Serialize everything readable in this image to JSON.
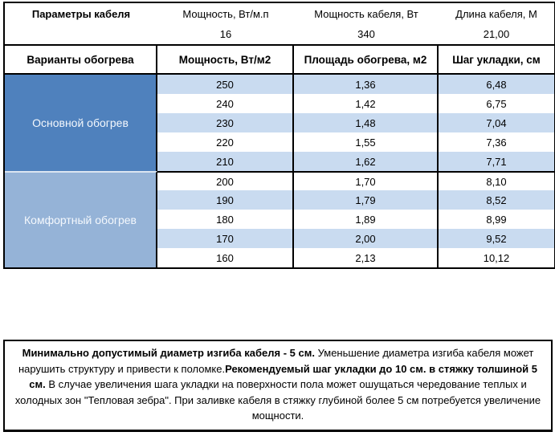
{
  "table": {
    "params_header": {
      "col1": "Параметры кабеля",
      "col2": "Мощность, Вт/м.п",
      "col3": "Мощность кабеля, Вт",
      "col4": "Длина кабеля, М"
    },
    "params_values": {
      "col2": "16",
      "col3": "340",
      "col4": "21,00"
    },
    "columns": [
      "Варианты обогрева",
      "Мощность, Вт/м2",
      "Площадь обогрева, м2",
      "Шаг укладки, см"
    ],
    "sections": [
      {
        "label": "Основной обогрев",
        "bg": "#4f81bd",
        "rows": [
          [
            "250",
            "1,36",
            "6,48"
          ],
          [
            "240",
            "1,42",
            "6,75"
          ],
          [
            "230",
            "1,48",
            "7,04"
          ],
          [
            "220",
            "1,55",
            "7,36"
          ],
          [
            "210",
            "1,62",
            "7,71"
          ]
        ]
      },
      {
        "label": "Комфортный обогрев",
        "bg": "#95b3d7",
        "rows": [
          [
            "200",
            "1,70",
            "8,10"
          ],
          [
            "190",
            "1,79",
            "8,52"
          ],
          [
            "180",
            "1,89",
            "8,99"
          ],
          [
            "170",
            "2,00",
            "9,52"
          ],
          [
            "160",
            "2,13",
            "10,12"
          ]
        ]
      }
    ],
    "stripe_color": "#c9dbf0",
    "border_color": "#000000"
  },
  "note": {
    "segments": [
      {
        "text": "Минимально допустимый диаметр изгиба кабеля - 5 см. ",
        "bold": true
      },
      {
        "text": " Уменьшение диаметра изгиба кабеля может нарушить структуру и привести к поломке.",
        "bold": false
      },
      {
        "text": "Рекомендуемый шаг укладки до 10 см. в стяжку толшиной 5 см.",
        "bold": true
      },
      {
        "text": " В  случае увеличения шага укладки на поверхности пола может ошущаться чередование теплых и холодных зон \"Тепловая зебра\". При заливке кабеля в стяжку глубиной более 5 см потребуется увеличение мощности.",
        "bold": false
      }
    ]
  }
}
